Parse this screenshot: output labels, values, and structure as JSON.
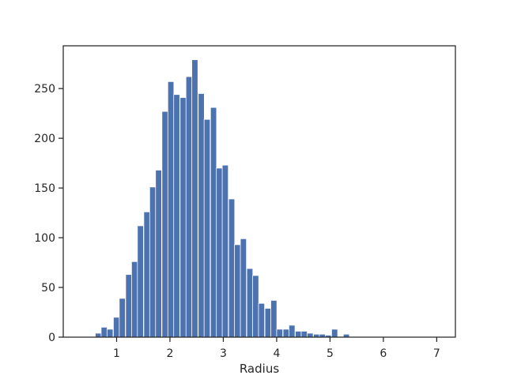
{
  "chart_data": {
    "type": "bar",
    "title": "",
    "xlabel": "Radius",
    "ylabel": "",
    "bin_width": 0.1134,
    "xlim": [
      0.0,
      7.35
    ],
    "ylim": [
      0,
      293
    ],
    "x_ticks": [
      1,
      2,
      3,
      4,
      5,
      6,
      7
    ],
    "y_ticks": [
      0,
      50,
      100,
      150,
      200,
      250
    ],
    "grid": false,
    "legend": "none",
    "bar_color": "#4c72b0",
    "bins_left": [
      0.6,
      0.71,
      0.82,
      0.94,
      1.05,
      1.17,
      1.28,
      1.39,
      1.51,
      1.62,
      1.73,
      1.85,
      1.96,
      2.07,
      2.19,
      2.3,
      2.41,
      2.53,
      2.64,
      2.76,
      2.87,
      2.98,
      3.1,
      3.21,
      3.32,
      3.44,
      3.55,
      3.66,
      3.78,
      3.89,
      4.0,
      4.12,
      4.23,
      4.35,
      4.46,
      4.57,
      4.69,
      4.8,
      4.91,
      5.03,
      5.14,
      5.25,
      5.37
    ],
    "values": [
      4,
      10,
      8,
      20,
      39,
      63,
      76,
      112,
      126,
      151,
      168,
      227,
      257,
      244,
      241,
      262,
      279,
      245,
      219,
      231,
      170,
      173,
      139,
      93,
      99,
      69,
      62,
      34,
      29,
      37,
      8,
      8,
      12,
      6,
      6,
      4,
      3,
      3,
      2,
      8,
      0,
      3,
      0
    ]
  }
}
